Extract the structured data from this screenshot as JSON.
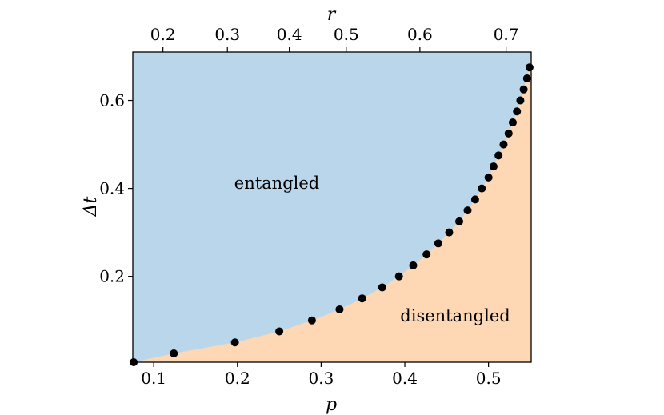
{
  "chart_data": {
    "type": "scatter",
    "xlabel": "p",
    "ylabel": "Δt",
    "top_xlabel": "r",
    "xlim": [
      0.075,
      0.551
    ],
    "ylim": [
      0.005,
      0.71
    ],
    "x_ticks": [
      0.1,
      0.2,
      0.3,
      0.4,
      0.5
    ],
    "x_tick_labels": [
      "0.1",
      "0.2",
      "0.3",
      "0.4",
      "0.5"
    ],
    "y_ticks": [
      0.2,
      0.4,
      0.6
    ],
    "y_tick_labels": [
      "0.2",
      "0.4",
      "0.6"
    ],
    "top_ticks_p": [
      0.111,
      0.188,
      0.262,
      0.33,
      0.418,
      0.521
    ],
    "top_tick_labels": [
      "0.2",
      "0.3",
      "0.4",
      "0.5",
      "0.6",
      "0.7"
    ],
    "region_labels": [
      "entangled",
      "disentangled"
    ],
    "colors": {
      "entangled": "#bad6ea",
      "disentangled": "#fed8b4",
      "points": "#000000"
    },
    "points": {
      "x": [
        0.076,
        0.124,
        0.197,
        0.25,
        0.289,
        0.322,
        0.349,
        0.373,
        0.393,
        0.41,
        0.426,
        0.44,
        0.453,
        0.465,
        0.475,
        0.484,
        0.492,
        0.5,
        0.506,
        0.512,
        0.518,
        0.524,
        0.529,
        0.534,
        0.538,
        0.542,
        0.546,
        0.549
      ],
      "y": [
        0.005,
        0.025,
        0.05,
        0.075,
        0.1,
        0.125,
        0.15,
        0.175,
        0.2,
        0.225,
        0.25,
        0.275,
        0.3,
        0.325,
        0.35,
        0.375,
        0.4,
        0.425,
        0.45,
        0.475,
        0.5,
        0.525,
        0.55,
        0.575,
        0.6,
        0.625,
        0.65,
        0.675
      ]
    }
  }
}
